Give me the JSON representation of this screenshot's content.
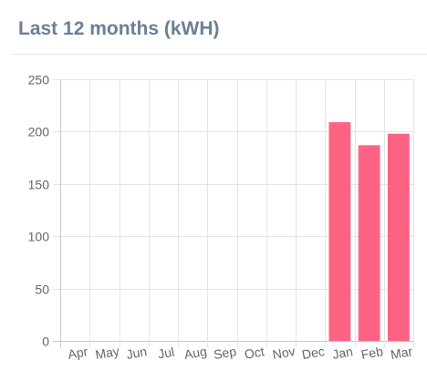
{
  "header": {
    "title": "Last 12 months (kWH)"
  },
  "chart_data": {
    "type": "bar",
    "title": "Last 12 months (kWH)",
    "xlabel": "",
    "ylabel": "",
    "categories": [
      "Apr",
      "May",
      "Jun",
      "Jul",
      "Aug",
      "Sep",
      "Oct",
      "Nov",
      "Dec",
      "Jan",
      "Feb",
      "Mar"
    ],
    "values": [
      0,
      0,
      0,
      0,
      0,
      0,
      0,
      0,
      0,
      209,
      187,
      198
    ],
    "ylim": [
      0,
      250
    ],
    "yticks": [
      0,
      50,
      100,
      150,
      200,
      250
    ],
    "grid": true,
    "legend": "none",
    "colors": {
      "bar": "#ff6384",
      "grid": "#e5e5e5",
      "axis": "#c8c8c8",
      "tick_text": "#666666"
    }
  }
}
